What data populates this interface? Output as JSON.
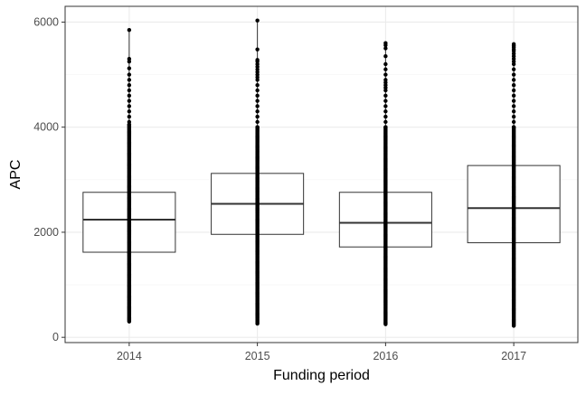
{
  "chart_data": {
    "type": "boxplot",
    "title": "",
    "xlabel": "Funding period",
    "ylabel": "APC",
    "ylim": [
      -100,
      6300
    ],
    "yticks": [
      0,
      2000,
      4000,
      6000
    ],
    "ytick_labels": [
      "0",
      "2000",
      "4000",
      "6000"
    ],
    "grid": true,
    "categories": [
      "2014",
      "2015",
      "2016",
      "2017"
    ],
    "boxes": [
      {
        "category": "2014",
        "q1": 1620,
        "median": 2240,
        "q3": 2760,
        "min": 300,
        "max": 5850,
        "outliers": [
          5850,
          5300,
          5250,
          5120,
          5000,
          4900,
          4800,
          4700,
          4600,
          4500,
          4400,
          4300,
          4200,
          4100,
          4050
        ]
      },
      {
        "category": "2015",
        "q1": 1960,
        "median": 2540,
        "q3": 3120,
        "min": 260,
        "max": 6030,
        "outliers": [
          6030,
          5480,
          5280,
          5250,
          5200,
          5150,
          5100,
          5050,
          5000,
          4950,
          4900,
          4800,
          4700,
          4600,
          4500,
          4400,
          4300,
          4200,
          4100,
          4000
        ]
      },
      {
        "category": "2016",
        "q1": 1720,
        "median": 2180,
        "q3": 2760,
        "min": 250,
        "max": 5600,
        "outliers": [
          5600,
          5560,
          5500,
          5350,
          5200,
          5100,
          5000,
          4900,
          4850,
          4800,
          4750,
          4700,
          4600,
          4500,
          4400,
          4300,
          4200,
          4100,
          4000
        ]
      },
      {
        "category": "2017",
        "q1": 1800,
        "median": 2460,
        "q3": 3270,
        "min": 220,
        "max": 5580,
        "outliers": [
          5580,
          5550,
          5520,
          5480,
          5450,
          5400,
          5350,
          5300,
          5250,
          5200,
          5100,
          5000,
          4900,
          4800,
          4700,
          4600,
          4500,
          4400,
          4300,
          4200,
          4100,
          4000
        ]
      }
    ],
    "colors": {
      "panel_border": "#333333",
      "grid_major": "#ebebeb",
      "grid_minor": "#f5f5f5",
      "box_stroke": "#333333",
      "point": "#000000",
      "text": "#4d4d4d",
      "axis_title": "#000000"
    }
  }
}
